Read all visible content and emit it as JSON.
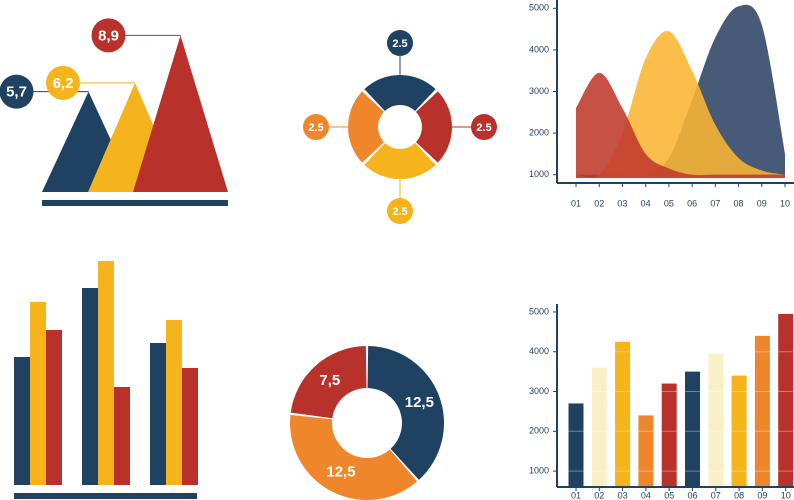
{
  "chart_data": [
    {
      "type": "triangle",
      "values": [
        5.7,
        6.2,
        8.9
      ],
      "value_labels": [
        "5,7",
        "6,2",
        "8,9"
      ],
      "colors": [
        "#1f4263",
        "#f5b31c",
        "#b8312a"
      ]
    },
    {
      "type": "pie",
      "values": [
        2.5,
        2.5,
        2.5,
        2.5
      ],
      "colors": [
        "#1f4263",
        "#b8312a",
        "#f5b31c",
        "#f0862c"
      ]
    },
    {
      "type": "area",
      "categories": [
        "01",
        "02",
        "03",
        "04",
        "05",
        "06",
        "07",
        "08",
        "09",
        "10"
      ],
      "series": [
        {
          "color": "#2d4466",
          "values": [
            1000,
            1000,
            1000,
            1000,
            1400,
            2800,
            4300,
            5050,
            4600,
            1500
          ]
        },
        {
          "color": "#fbb532",
          "values": [
            1000,
            1000,
            2000,
            3800,
            4450,
            3500,
            2200,
            1400,
            1100,
            1000
          ]
        },
        {
          "color": "#c0392b",
          "values": [
            2600,
            3450,
            2600,
            1500,
            1150,
            1000,
            1000,
            1000,
            1000,
            1000
          ]
        }
      ],
      "ylim": [
        800,
        5200
      ],
      "yticks": [
        1000,
        2000,
        3000,
        4000,
        5000
      ]
    },
    {
      "type": "bar",
      "series": [
        {
          "color": "#1f4263",
          "values": [
            128,
            197,
            142
          ]
        },
        {
          "color": "#f5b31c",
          "values": [
            183,
            224,
            165
          ]
        },
        {
          "color": "#b8312a",
          "values": [
            155,
            98,
            117
          ]
        }
      ]
    },
    {
      "type": "pie",
      "values": [
        12.5,
        12.5,
        7.5
      ],
      "value_labels": [
        "12,5",
        "12,5",
        "7,5"
      ],
      "colors": [
        "#1f4263",
        "#f0862c",
        "#b8312a"
      ]
    },
    {
      "type": "bar",
      "categories": [
        "01",
        "02",
        "03",
        "04",
        "05",
        "06",
        "07",
        "08",
        "09",
        "10"
      ],
      "values": [
        2700,
        3600,
        4250,
        2400,
        3200,
        3500,
        3950,
        3400,
        4400,
        4950
      ],
      "colors": [
        "#1f4263",
        "#faf0c8",
        "#f5b31c",
        "#f0862c",
        "#b8312a",
        "#1f4263",
        "#faf0c8",
        "#f5b31c",
        "#f0862c",
        "#b8312a"
      ],
      "ylim": [
        600,
        5200
      ],
      "yticks": [
        1000,
        2000,
        3000,
        4000,
        5000
      ],
      "grid": true
    }
  ]
}
